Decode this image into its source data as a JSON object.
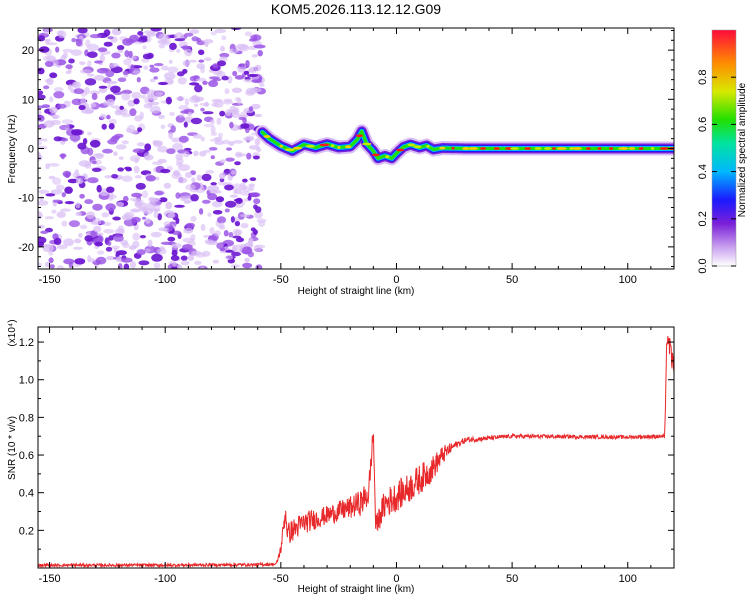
{
  "title": "KOM5.2026.113.12.12.G09",
  "colors": {
    "snr_line": "#e8292b",
    "spectrum_dot": "#7a1fd8",
    "frame": "#000000"
  },
  "chart_data": [
    {
      "type": "heatmap",
      "name": "spectrogram",
      "xlabel": "Height of straight line (km)",
      "ylabel": "Frequency (Hz)",
      "xlim": [
        -155,
        120
      ],
      "ylim": [
        -24.5,
        24.5
      ],
      "xticks": [
        -150,
        -100,
        -50,
        0,
        50,
        100
      ],
      "yticks": [
        -20,
        -10,
        0,
        10,
        20
      ],
      "noise_region_x": [
        -155,
        -58
      ],
      "signal_track": {
        "x": [
          -58,
          -55,
          -50,
          -45,
          -40,
          -35,
          -30,
          -25,
          -20,
          -17,
          -15,
          -13,
          -10,
          -8,
          -5,
          -2,
          0,
          3,
          6,
          10,
          13,
          16,
          20,
          30,
          50,
          80,
          100,
          120
        ],
        "freq": [
          3.3,
          2.0,
          0.5,
          -0.5,
          0.8,
          0.2,
          0.9,
          0.2,
          0.4,
          1.8,
          3.5,
          1.0,
          -0.5,
          -2.0,
          -1.5,
          -2.0,
          -1.0,
          0.3,
          0.8,
          0.2,
          0.6,
          -0.2,
          0.1,
          0.0,
          0.0,
          0.0,
          0.0,
          0.0
        ]
      },
      "colorbar": {
        "label": "Normalized spectral amplitude",
        "ticks": [
          "0.0",
          "0.2",
          "0.4",
          "0.6",
          "0.8"
        ],
        "range": [
          0,
          1
        ]
      }
    },
    {
      "type": "line",
      "name": "snr",
      "xlabel": "Height of straight line (km)",
      "ylabel": "SNR (10 * v/v)",
      "scale_label": "(x10⁴)",
      "xlim": [
        -155,
        120
      ],
      "ylim": [
        0,
        1.28
      ],
      "xticks": [
        -150,
        -100,
        -50,
        0,
        50,
        100
      ],
      "yticks": [
        0.2,
        0.4,
        0.6,
        0.8,
        1.0,
        1.2
      ],
      "series": [
        {
          "name": "SNR",
          "x": [
            -155,
            -100,
            -60,
            -52,
            -50,
            -48,
            -47,
            -45,
            -40,
            -30,
            -20,
            -15,
            -12,
            -10,
            -9,
            -5,
            0,
            5,
            10,
            15,
            20,
            25,
            30,
            40,
            50,
            100,
            116,
            117,
            118,
            120
          ],
          "values": [
            0.015,
            0.015,
            0.018,
            0.02,
            0.1,
            0.3,
            0.18,
            0.2,
            0.24,
            0.28,
            0.32,
            0.35,
            0.4,
            0.73,
            0.22,
            0.34,
            0.38,
            0.42,
            0.47,
            0.52,
            0.6,
            0.65,
            0.68,
            0.69,
            0.7,
            0.695,
            0.7,
            1.25,
            1.18,
            1.05
          ],
          "noise": [
            0.008,
            0.008,
            0.008,
            0.008,
            0.03,
            0.06,
            0.06,
            0.06,
            0.06,
            0.05,
            0.06,
            0.07,
            0.08,
            0.05,
            0.05,
            0.08,
            0.08,
            0.08,
            0.08,
            0.07,
            0.05,
            0.02,
            0.015,
            0.012,
            0.01,
            0.01,
            0.01,
            0.06,
            0.06,
            0.06
          ]
        }
      ]
    }
  ]
}
